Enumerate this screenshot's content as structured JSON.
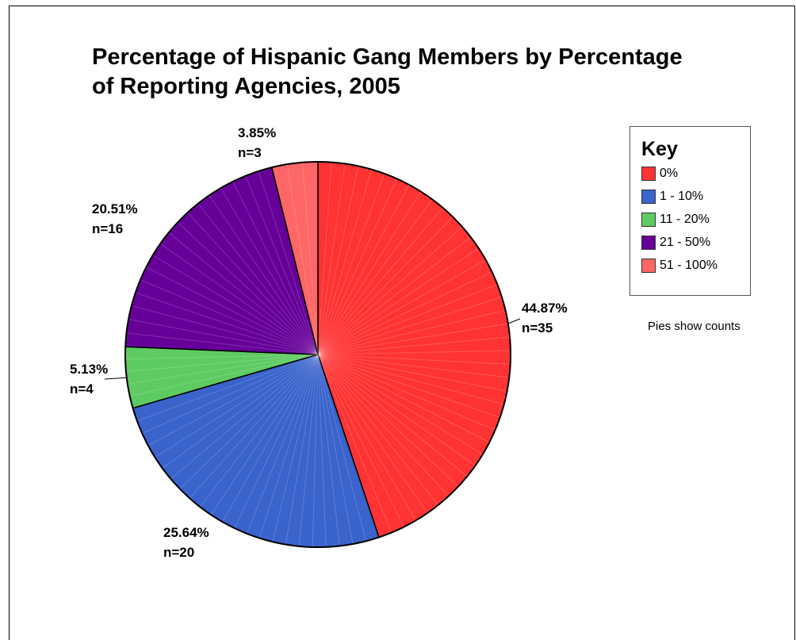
{
  "chart_data": {
    "type": "pie",
    "title_lines": [
      "Percentage of Hispanic Gang Members by Percentage",
      "of Reporting Agencies, 2005"
    ],
    "legend_title": "Key",
    "legend_placement": "right",
    "note": "Pies show counts",
    "slices": [
      {
        "category": "0%",
        "count": 35,
        "percent": 44.87,
        "percent_label": "44.87%",
        "count_label": "n=35",
        "color": "#ff3333"
      },
      {
        "category": "1 - 10%",
        "count": 20,
        "percent": 25.64,
        "percent_label": "25.64%",
        "count_label": "n=20",
        "color": "#3a63cc"
      },
      {
        "category": "11 - 20%",
        "count": 4,
        "percent": 5.13,
        "percent_label": "5.13%",
        "count_label": "n=4",
        "color": "#5ecb62"
      },
      {
        "category": "21 - 50%",
        "count": 16,
        "percent": 20.51,
        "percent_label": "20.51%",
        "count_label": "n=16",
        "color": "#660099"
      },
      {
        "category": "51 - 100%",
        "count": 3,
        "percent": 3.85,
        "percent_label": "3.85%",
        "count_label": "n=3",
        "color": "#ff6666"
      }
    ]
  }
}
